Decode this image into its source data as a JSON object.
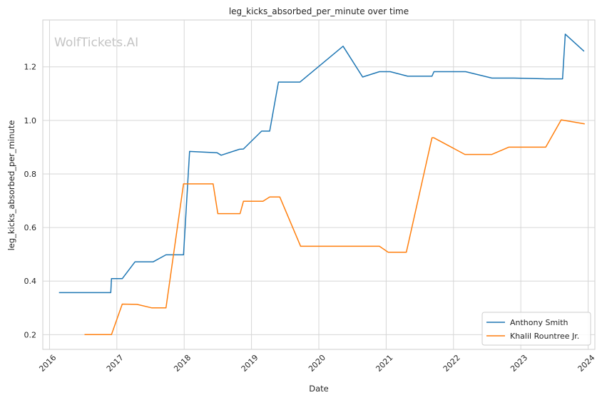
{
  "chart_data": {
    "type": "line",
    "title": "leg_kicks_absorbed_per_minute over time",
    "xlabel": "Date",
    "ylabel": "leg_kicks_absorbed_per_minute",
    "watermark": "WolfTickets.AI",
    "xlim": [
      2015.9,
      2024.1
    ],
    "ylim": [
      0.145,
      1.375
    ],
    "x_ticks": [
      2016,
      2017,
      2018,
      2019,
      2020,
      2021,
      2022,
      2023,
      2024
    ],
    "x_tick_labels": [
      "2016",
      "2017",
      "2018",
      "2019",
      "2020",
      "2021",
      "2022",
      "2023",
      "2024"
    ],
    "y_ticks": [
      0.2,
      0.4,
      0.6,
      0.8,
      1.0,
      1.2
    ],
    "y_tick_labels": [
      "0.2",
      "0.4",
      "0.6",
      "0.8",
      "1.0",
      "1.2"
    ],
    "grid": true,
    "legend_position": "lower-right",
    "series": [
      {
        "name": "Anthony Smith",
        "color": "#1f77b4",
        "x": [
          2016.14,
          2016.91,
          2016.92,
          2017.08,
          2017.27,
          2017.54,
          2017.73,
          2017.99,
          2018.08,
          2018.49,
          2018.55,
          2018.82,
          2018.88,
          2019.15,
          2019.27,
          2019.4,
          2019.72,
          2020.36,
          2020.65,
          2020.9,
          2021.06,
          2021.32,
          2021.68,
          2021.71,
          2022.18,
          2022.57,
          2022.9,
          2023.37,
          2023.62,
          2023.66,
          2023.94
        ],
        "y": [
          0.357,
          0.357,
          0.409,
          0.409,
          0.472,
          0.472,
          0.498,
          0.498,
          0.884,
          0.879,
          0.87,
          0.892,
          0.893,
          0.96,
          0.96,
          1.143,
          1.143,
          1.277,
          1.162,
          1.182,
          1.182,
          1.165,
          1.165,
          1.182,
          1.182,
          1.158,
          1.158,
          1.155,
          1.155,
          1.322,
          1.258
        ]
      },
      {
        "name": "Khalil Rountree Jr.",
        "color": "#ff7f0e",
        "x": [
          2016.52,
          2016.92,
          2017.08,
          2017.3,
          2017.52,
          2017.73,
          2017.99,
          2018.43,
          2018.5,
          2018.83,
          2018.88,
          2019.17,
          2019.27,
          2019.42,
          2019.73,
          2020.9,
          2021.03,
          2021.3,
          2021.68,
          2021.71,
          2022.17,
          2022.57,
          2022.82,
          2023.37,
          2023.6,
          2023.95
        ],
        "y": [
          0.2,
          0.2,
          0.314,
          0.313,
          0.3,
          0.3,
          0.763,
          0.763,
          0.652,
          0.652,
          0.698,
          0.698,
          0.714,
          0.714,
          0.53,
          0.53,
          0.508,
          0.508,
          0.935,
          0.935,
          0.873,
          0.873,
          0.9,
          0.9,
          1.002,
          0.987
        ]
      }
    ]
  }
}
